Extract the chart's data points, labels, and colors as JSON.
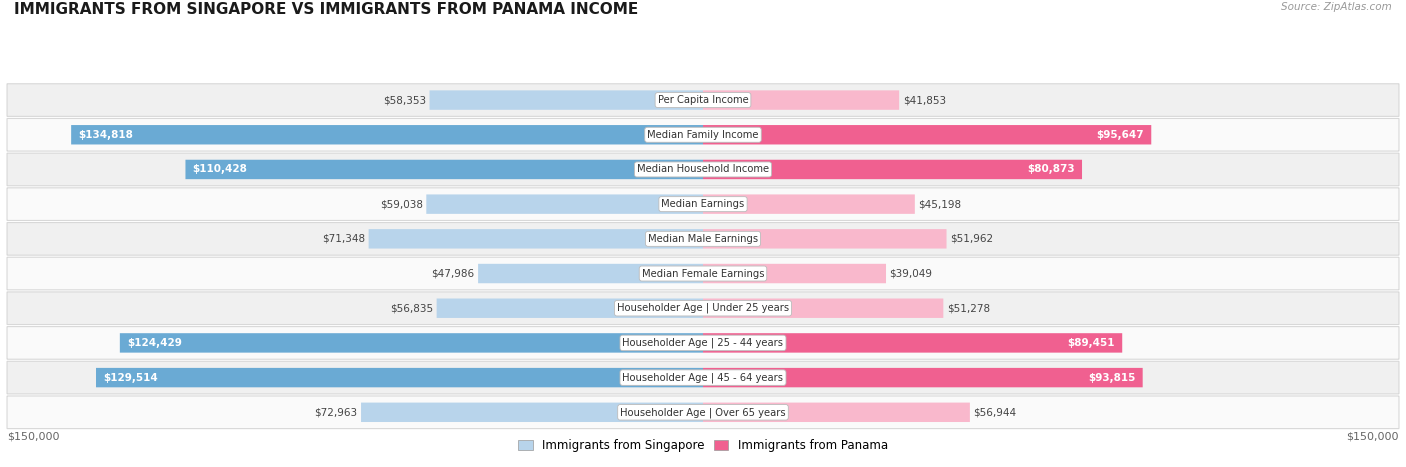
{
  "title": "IMMIGRANTS FROM SINGAPORE VS IMMIGRANTS FROM PANAMA INCOME",
  "source": "Source: ZipAtlas.com",
  "max_value": 150000,
  "categories": [
    "Per Capita Income",
    "Median Family Income",
    "Median Household Income",
    "Median Earnings",
    "Median Male Earnings",
    "Median Female Earnings",
    "Householder Age | Under 25 years",
    "Householder Age | 25 - 44 years",
    "Householder Age | 45 - 64 years",
    "Householder Age | Over 65 years"
  ],
  "singapore_values": [
    58353,
    134818,
    110428,
    59038,
    71348,
    47986,
    56835,
    124429,
    129514,
    72963
  ],
  "panama_values": [
    41853,
    95647,
    80873,
    45198,
    51962,
    39049,
    51278,
    89451,
    93815,
    56944
  ],
  "singapore_color_light": "#b8d4eb",
  "singapore_color_dark": "#6aaad4",
  "panama_color_light": "#f9b8cc",
  "panama_color_dark": "#f06090",
  "sg_threshold": 80000,
  "pa_threshold": 75000,
  "row_bg_odd": "#f0f0f0",
  "row_bg_even": "#fafafa",
  "legend_singapore": "Immigrants from Singapore",
  "legend_panama": "Immigrants from Panama",
  "axis_label_left": "$150,000",
  "axis_label_right": "$150,000"
}
